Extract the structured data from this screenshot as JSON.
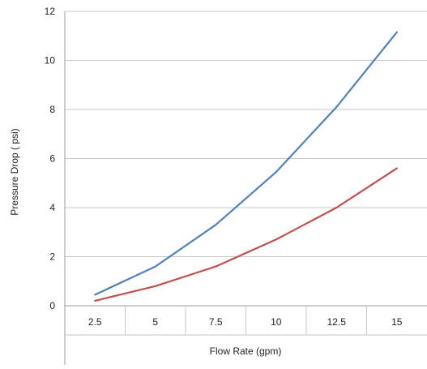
{
  "chart_data": {
    "type": "line",
    "categories": [
      "2.5",
      "5",
      "7.5",
      "10",
      "12.5",
      "15"
    ],
    "series": [
      {
        "color": "#4f81bd",
        "values": [
          0.45,
          1.6,
          3.3,
          5.45,
          8.1,
          11.15
        ]
      },
      {
        "color": "#c0504d",
        "values": [
          0.2,
          0.8,
          1.6,
          2.7,
          4.0,
          5.6
        ]
      }
    ],
    "xlabel": "Flow Rate (gpm)",
    "ylabel": "Pressure Drop ( psi)",
    "ylim": [
      0,
      12
    ],
    "yticks": [
      "0",
      "2",
      "4",
      "6",
      "8",
      "10",
      "12"
    ],
    "grid": "horizontal",
    "legend": "none"
  }
}
